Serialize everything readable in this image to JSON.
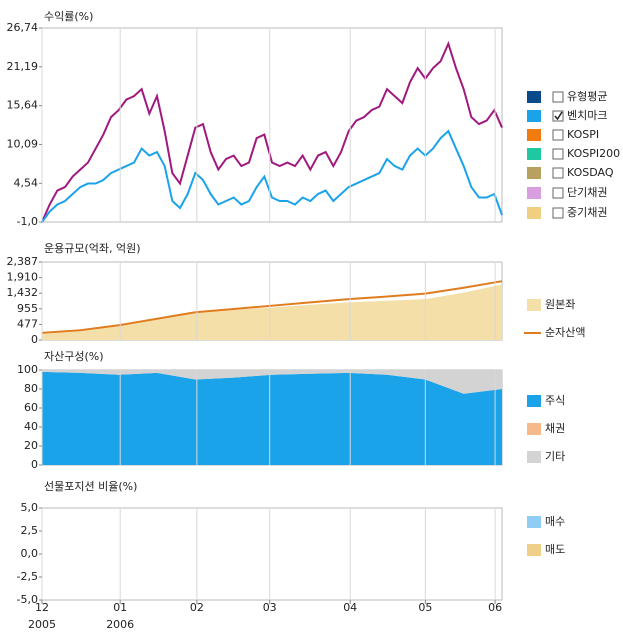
{
  "chart_data": [
    {
      "type": "line",
      "title": "수익률(%)",
      "x": [
        0,
        1,
        2,
        3,
        4,
        5,
        6,
        7,
        8,
        9,
        10,
        11,
        12,
        13,
        14,
        15,
        16,
        17,
        18,
        19,
        20,
        21,
        22,
        23,
        24,
        25,
        26,
        27,
        28,
        29,
        30,
        31,
        32,
        33,
        34,
        35,
        36,
        37,
        38,
        39,
        40,
        41,
        42,
        43,
        44,
        45,
        46,
        47,
        48,
        49,
        50,
        51,
        52,
        53,
        54,
        55,
        56,
        57,
        58,
        59,
        60
      ],
      "series": [
        {
          "color": "#a0197f",
          "values": [
            -1.0,
            1.5,
            3.5,
            4.0,
            5.5,
            6.5,
            7.5,
            9.5,
            11.5,
            14.0,
            15.0,
            16.5,
            17.0,
            18.0,
            14.5,
            17.0,
            12.0,
            6.0,
            4.5,
            8.5,
            12.5,
            13.0,
            9.0,
            6.5,
            8.0,
            8.5,
            7.0,
            7.5,
            11.0,
            11.5,
            7.5,
            7.0,
            7.5,
            7.0,
            8.5,
            6.5,
            8.5,
            9.0,
            7.0,
            9.0,
            12.0,
            13.5,
            14.0,
            15.0,
            15.5,
            18.0,
            17.0,
            16.0,
            19.0,
            21.0,
            19.5,
            21.0,
            22.0,
            24.5,
            21.0,
            18.0,
            14.0,
            13.0,
            13.5,
            15.0,
            12.5
          ]
        },
        {
          "color": "#1ba3ea",
          "values": [
            -1.0,
            0.5,
            1.5,
            2,
            3,
            4,
            4.5,
            4.5,
            5,
            6,
            6.5,
            7,
            7.5,
            9.5,
            8.5,
            9,
            7,
            2,
            1,
            3,
            6,
            5,
            3,
            1.5,
            2,
            2.5,
            1.5,
            2,
            4,
            5.5,
            2.5,
            2,
            2,
            1.5,
            2.5,
            2,
            3,
            3.5,
            2,
            3,
            4,
            4.5,
            5,
            5.5,
            6,
            8,
            7,
            6.5,
            8.5,
            9.5,
            8.5,
            9.5,
            11,
            12,
            9.5,
            7,
            4,
            2.5,
            2.5,
            3,
            0
          ]
        }
      ],
      "xlim": [
        0,
        60
      ],
      "ylim": [
        -1.0,
        26.74
      ],
      "yticks": [
        {
          "value": 26.74,
          "label": "26,74"
        },
        {
          "value": 21.19,
          "label": "21,19"
        },
        {
          "value": 15.64,
          "label": "15,64"
        },
        {
          "value": 10.09,
          "label": "10,09"
        },
        {
          "value": 4.54,
          "label": "4,54"
        },
        {
          "value": -1.0,
          "label": "-1,0"
        }
      ],
      "legend": [
        {
          "name": "유형평균",
          "color": "#0a4a8a",
          "checked": false
        },
        {
          "name": "벤치마크",
          "color": "#1ba3ea",
          "checked": true
        },
        {
          "name": "KOSPI",
          "color": "#f07c10",
          "checked": false
        },
        {
          "name": "KOSPI200",
          "color": "#1fc8a0",
          "checked": false
        },
        {
          "name": "KOSDAQ",
          "color": "#b8a060",
          "checked": false
        },
        {
          "name": "단기채권",
          "color": "#d99ee0",
          "checked": false
        },
        {
          "name": "중기채권",
          "color": "#f0d080",
          "checked": false
        }
      ]
    },
    {
      "type": "area_line",
      "title": "운용규모(억좌, 억원)",
      "x": [
        0,
        5,
        10,
        15,
        20,
        25,
        30,
        35,
        40,
        45,
        50,
        55,
        60
      ],
      "series": [
        {
          "name": "원본좌",
          "color": "#f5dfa8",
          "kind": "area",
          "values": [
            200,
            260,
            420,
            620,
            820,
            920,
            1000,
            1080,
            1150,
            1200,
            1250,
            1450,
            1700
          ]
        },
        {
          "name": "순자산액",
          "color": "#e07c1e",
          "kind": "line",
          "values": [
            220,
            300,
            450,
            650,
            850,
            950,
            1050,
            1150,
            1250,
            1330,
            1420,
            1600,
            1800
          ]
        }
      ],
      "xlim": [
        0,
        60
      ],
      "ylim": [
        0,
        2387
      ],
      "yticks": [
        {
          "value": 2387,
          "label": "2,387"
        },
        {
          "value": 1910,
          "label": "1,910"
        },
        {
          "value": 1432,
          "label": "1,432"
        },
        955,
        477,
        0
      ]
    },
    {
      "type": "stacked_area",
      "title": "자산구성(%)",
      "x": [
        0,
        5,
        10,
        15,
        20,
        25,
        30,
        35,
        40,
        45,
        50,
        55,
        60
      ],
      "series": [
        {
          "name": "주식",
          "color": "#1ba3ea",
          "values": [
            98,
            97,
            95,
            97,
            90,
            92,
            95,
            96,
            97,
            95,
            90,
            75,
            80
          ]
        },
        {
          "name": "채권",
          "color": "#f5b98a",
          "values": [
            0,
            0,
            0,
            0,
            0,
            0,
            0,
            0,
            0,
            0,
            0,
            0,
            0
          ]
        },
        {
          "name": "기타",
          "color": "#d3d3d3",
          "values": [
            2,
            3,
            5,
            3,
            10,
            8,
            5,
            4,
            3,
            5,
            10,
            25,
            20
          ]
        }
      ],
      "xlim": [
        0,
        60
      ],
      "ylim": [
        0,
        100
      ],
      "yticks": [
        100,
        80,
        60,
        40,
        20,
        0
      ]
    },
    {
      "type": "bar",
      "title": "선물포지션 비율(%)",
      "series": [
        {
          "name": "매수",
          "color": "#8fcdf5"
        },
        {
          "name": "매도",
          "color": "#f0cf88"
        }
      ],
      "xlim": [
        0,
        60
      ],
      "ylim": [
        -5.0,
        5.0
      ],
      "yticks": [
        {
          "value": 5.0,
          "label": "5,0"
        },
        {
          "value": 2.5,
          "label": "2,5"
        },
        {
          "value": 0.0,
          "label": "0,0"
        },
        {
          "value": -2.5,
          "label": "-2,5"
        },
        {
          "value": -5.0,
          "label": "-5,0"
        }
      ],
      "xticks": [
        {
          "value": 0,
          "label": "12"
        },
        {
          "value": 10.2,
          "label": "01"
        },
        {
          "value": 20.2,
          "label": "02"
        },
        {
          "value": 29.7,
          "label": "03"
        },
        {
          "value": 40.2,
          "label": "04"
        },
        {
          "value": 50,
          "label": "05"
        },
        {
          "value": 59.1,
          "label": "06"
        }
      ],
      "xtick_years": [
        {
          "value": 0,
          "label": "2005"
        },
        {
          "value": 10.2,
          "label": "2006"
        }
      ]
    }
  ]
}
